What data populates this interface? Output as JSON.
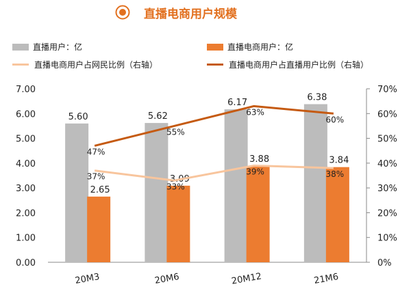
{
  "title": "直播电商用户规模",
  "colors": {
    "accent": "#e2701f",
    "bar_gray": "#bcbcbc",
    "bar_orange": "#ec7c30",
    "line_light": "#f8c59d",
    "line_dark": "#c55a11"
  },
  "legend": {
    "live_users": "直播用户：亿",
    "ecom_users": "直播电商用户：亿",
    "ratio_net": "直播电商用户占网民比例（右轴）",
    "ratio_live": "直播电商用户占直播用户比例（右轴）"
  },
  "chart_data": {
    "type": "bar",
    "categories": [
      "20M3",
      "20M6",
      "20M12",
      "21M6"
    ],
    "series": [
      {
        "name": "直播用户：亿",
        "kind": "bar",
        "axis": "left",
        "values": [
          5.6,
          5.62,
          6.17,
          6.38
        ],
        "labels": [
          "5.60",
          "5.62",
          "6.17",
          "6.38"
        ]
      },
      {
        "name": "直播电商用户：亿",
        "kind": "bar",
        "axis": "left",
        "values": [
          2.65,
          3.09,
          3.88,
          3.84
        ],
        "labels": [
          "2.65",
          "3.09",
          "3.88",
          "3.84"
        ]
      },
      {
        "name": "直播电商用户占网民比例（右轴）",
        "kind": "line",
        "axis": "right",
        "values": [
          37,
          33,
          39,
          38
        ],
        "labels": [
          "37%",
          "33%",
          "39%",
          "38%"
        ]
      },
      {
        "name": "直播电商用户占直播用户比例（右轴）",
        "kind": "line",
        "axis": "right",
        "values": [
          47,
          55,
          63,
          60
        ],
        "labels": [
          "47%",
          "55%",
          "63%",
          "60%"
        ]
      }
    ],
    "left_axis": {
      "min": 0,
      "max": 7,
      "ticks": [
        "0.00",
        "1.00",
        "2.00",
        "3.00",
        "4.00",
        "5.00",
        "6.00",
        "7.00"
      ]
    },
    "right_axis": {
      "min": 0,
      "max": 70,
      "ticks": [
        "0%",
        "10%",
        "20%",
        "30%",
        "40%",
        "50%",
        "60%",
        "70%"
      ]
    },
    "grid": false,
    "legend_position": "top"
  }
}
